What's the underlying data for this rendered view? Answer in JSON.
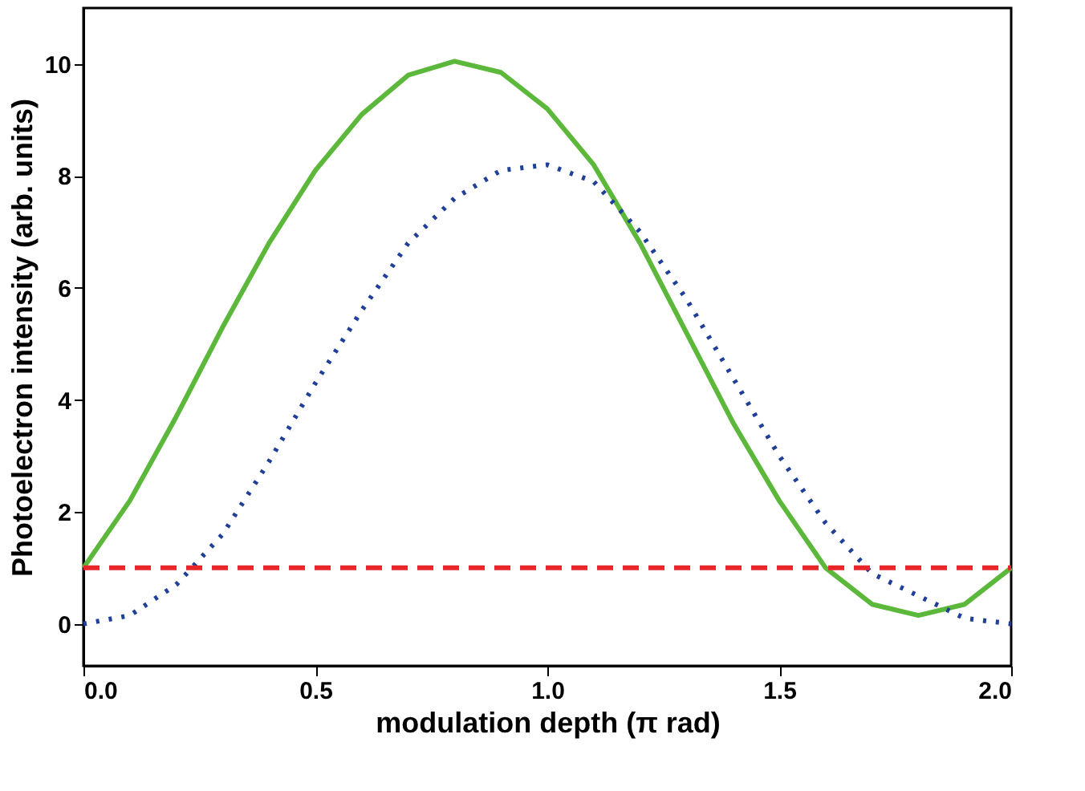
{
  "chart_data": {
    "type": "line",
    "xlabel": "modulation depth (π rad)",
    "ylabel": "Photoelectron intensity (arb. units)",
    "xlim": [
      0,
      2
    ],
    "ylim": [
      -0.75,
      11
    ],
    "xticks": [
      {
        "value": 0,
        "label": "0.0"
      },
      0.5,
      {
        "value": 1,
        "label": "1.0"
      },
      1.5,
      {
        "value": 2,
        "label": "2.0"
      }
    ],
    "yticks": [
      0,
      2,
      4,
      6,
      8,
      10
    ],
    "grid": false,
    "marker": "none",
    "series": [
      {
        "color": "#5cb83a",
        "line_style": "solid",
        "x": [
          0,
          0.1,
          0.2,
          0.3,
          0.4,
          0.5,
          0.6,
          0.7,
          0.8,
          0.9,
          1.0,
          1.1,
          1.2,
          1.3,
          1.4,
          1.5,
          1.6,
          1.7,
          1.8,
          1.9,
          2.0
        ],
        "values": [
          1.0,
          2.2,
          3.7,
          5.3,
          6.8,
          8.1,
          9.1,
          9.8,
          10.05,
          9.85,
          9.2,
          8.2,
          6.8,
          5.2,
          3.6,
          2.2,
          1.0,
          0.35,
          0.15,
          0.35,
          1.0
        ]
      },
      {
        "color": "#1f3f99",
        "line_style": "dotted",
        "x": [
          0,
          0.1,
          0.2,
          0.3,
          0.4,
          0.5,
          0.6,
          0.7,
          0.8,
          0.9,
          1.0,
          1.1,
          1.2,
          1.3,
          1.4,
          1.5,
          1.6,
          1.7,
          1.8,
          1.9,
          2.0
        ],
        "values": [
          0,
          0.15,
          0.7,
          1.6,
          2.9,
          4.3,
          5.6,
          6.8,
          7.6,
          8.1,
          8.2,
          7.9,
          7.0,
          5.8,
          4.4,
          3.0,
          1.8,
          0.9,
          0.5,
          0.1,
          0
        ]
      },
      {
        "color": "#e8262a",
        "line_style": "dashed",
        "x": [
          0,
          2.0
        ],
        "values": [
          1.0,
          1.0
        ]
      }
    ]
  }
}
